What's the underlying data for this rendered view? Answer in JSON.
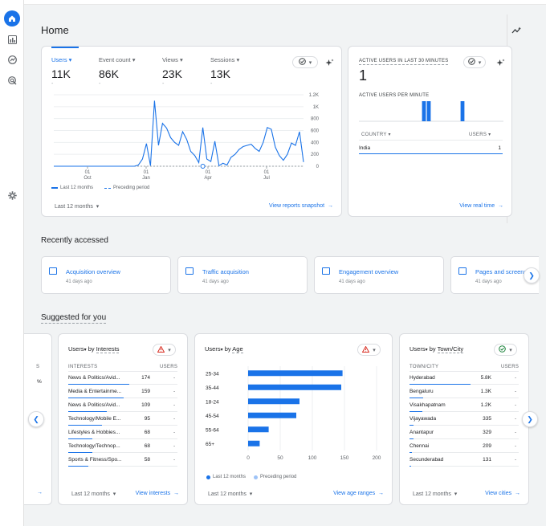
{
  "page": {
    "title": "Home"
  },
  "overview": {
    "metrics": [
      {
        "label": "Users",
        "value": "11K",
        "sub": "-"
      },
      {
        "label": "Event count",
        "value": "86K",
        "sub": "-"
      },
      {
        "label": "Views",
        "value": "23K",
        "sub": "-"
      },
      {
        "label": "Sessions",
        "value": "13K",
        "sub": "-"
      }
    ],
    "y_ticks": [
      "1.2K",
      "1K",
      "800",
      "600",
      "400",
      "200",
      "0"
    ],
    "x_ticks": [
      {
        "day": "01",
        "month": "Oct"
      },
      {
        "day": "01",
        "month": "Jan"
      },
      {
        "day": "01",
        "month": "Apr"
      },
      {
        "day": "01",
        "month": "Jul"
      }
    ],
    "legend": {
      "current": "Last 12 months",
      "previous": "Preceding period"
    },
    "date_range": "Last 12 months",
    "link": "View reports snapshot"
  },
  "realtime": {
    "title": "ACTIVE USERS IN LAST 30 MINUTES",
    "value": "1",
    "per_minute_label": "ACTIVE USERS PER MINUTE",
    "per_minute": [
      0,
      0,
      0,
      0,
      0,
      0,
      0,
      0,
      0,
      0,
      0,
      0,
      0,
      1,
      1,
      0,
      0,
      0,
      0,
      0,
      0,
      1,
      0,
      0,
      0,
      0,
      0,
      0,
      0,
      0
    ],
    "col_country": "COUNTRY",
    "col_users": "USERS",
    "rows": [
      {
        "country": "India",
        "users": "1"
      }
    ],
    "link": "View real time"
  },
  "recent": {
    "title": "Recently accessed",
    "items": [
      {
        "title": "Acquisition overview",
        "date": "41 days ago"
      },
      {
        "title": "Traffic acquisition",
        "date": "41 days ago"
      },
      {
        "title": "Engagement overview",
        "date": "41 days ago"
      },
      {
        "title": "Pages and screens",
        "date": "41 days ago"
      }
    ]
  },
  "suggested": {
    "title": "Suggested for you",
    "interests": {
      "title_metric": "Users",
      "title_by": "by",
      "title_dim": "Interests",
      "col_left": "INTERESTS",
      "col_right": "USERS",
      "rows": [
        {
          "name": "News & Politics/Avid...",
          "value": "174",
          "frac": 1.0
        },
        {
          "name": "Media & Entertainme...",
          "value": "159",
          "frac": 0.91
        },
        {
          "name": "News & Politics/Avid...",
          "value": "109",
          "frac": 0.63
        },
        {
          "name": "Technology/Mobile E...",
          "value": "95",
          "frac": 0.55
        },
        {
          "name": "Lifestyles & Hobbies...",
          "value": "68",
          "frac": 0.39
        },
        {
          "name": "Technology/Technop...",
          "value": "68",
          "frac": 0.39
        },
        {
          "name": "Sports & Fitness/Spo...",
          "value": "58",
          "frac": 0.33
        }
      ],
      "date_range": "Last 12 months",
      "link": "View interests"
    },
    "age": {
      "title_metric": "Users",
      "title_by": "by",
      "title_dim": "Age",
      "x_ticks": [
        "0",
        "50",
        "100",
        "150",
        "200"
      ],
      "legend_current": "Last 12 months",
      "legend_previous": "Preceding period",
      "date_range": "Last 12 months",
      "link": "View age ranges"
    },
    "cities": {
      "title_metric": "Users",
      "title_by": "by",
      "title_dim": "Town/City",
      "col_left": "TOWN/CITY",
      "col_right": "USERS",
      "rows": [
        {
          "name": "Hyderabad",
          "value": "5.8K",
          "frac": 1.0
        },
        {
          "name": "Bengaluru",
          "value": "1.3K",
          "frac": 0.22
        },
        {
          "name": "Visakhapatnam",
          "value": "1.2K",
          "frac": 0.21
        },
        {
          "name": "Vijayawada",
          "value": "335",
          "frac": 0.06
        },
        {
          "name": "Anantapur",
          "value": "329",
          "frac": 0.06
        },
        {
          "name": "Chennai",
          "value": "209",
          "frac": 0.04
        },
        {
          "name": "Secunderabad",
          "value": "131",
          "frac": 0.02
        }
      ],
      "date_range": "Last 12 months",
      "link": "View cities"
    },
    "partial_left": {
      "col": "S",
      "pct": "%"
    }
  },
  "chart_data": [
    {
      "type": "line",
      "series": [
        {
          "name": "Last 12 months",
          "values": [
            0,
            0,
            0,
            0,
            0,
            0,
            0,
            0,
            0,
            0,
            0,
            0,
            0,
            0,
            0,
            0,
            0,
            0,
            0,
            0,
            0,
            20,
            120,
            380,
            10,
            1100,
            350,
            720,
            640,
            480,
            400,
            350,
            580,
            450,
            250,
            180,
            60,
            650,
            120,
            80,
            420,
            10,
            50,
            20,
            150,
            200,
            280,
            330,
            350,
            370,
            300,
            250,
            400,
            650,
            620,
            320,
            180,
            100,
            200,
            390,
            350,
            580,
            70
          ]
        }
      ],
      "ylim": [
        0,
        1200
      ],
      "y_ticks": [
        0,
        200,
        400,
        600,
        800,
        1000,
        1200
      ],
      "x_tick_labels": [
        "01 Oct",
        "01 Jan",
        "01 Apr",
        "01 Jul"
      ]
    },
    {
      "type": "bar",
      "orientation": "horizontal",
      "categories": [
        "25-34",
        "35-44",
        "18-24",
        "45-54",
        "55-64",
        "65+"
      ],
      "values": [
        147,
        145,
        80,
        75,
        32,
        18
      ],
      "xlim": [
        0,
        200
      ],
      "x_ticks": [
        0,
        50,
        100,
        150,
        200
      ]
    }
  ],
  "colors": {
    "accent": "#1a73e8",
    "line": "#1a73e8",
    "preceding": "#9ec3f7",
    "warning": "#d93025",
    "ok": "#188038"
  }
}
